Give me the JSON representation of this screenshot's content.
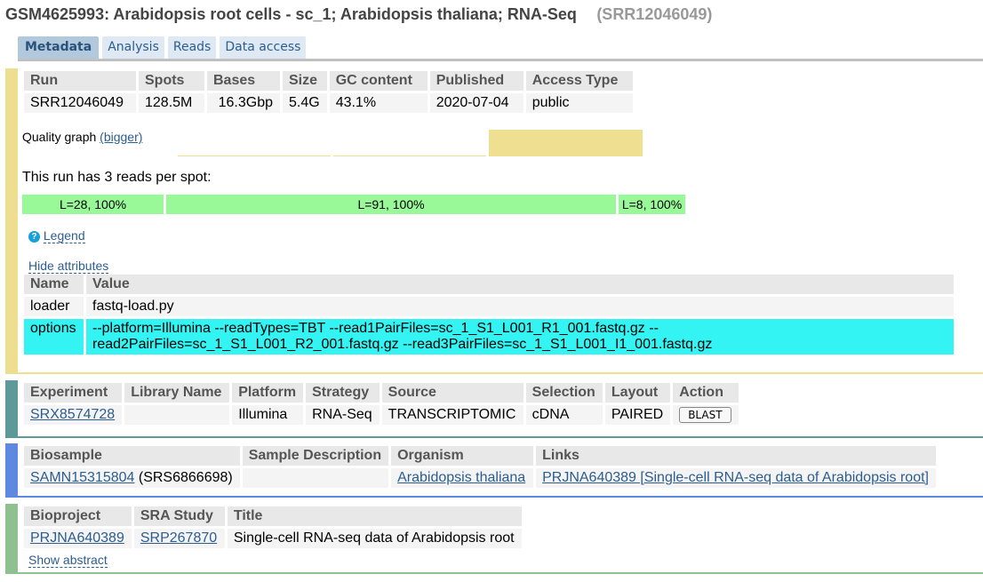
{
  "page": {
    "title": "GSM4625993: Arabidopsis root cells - sc_1; Arabidopsis thaliana; RNA-Seq",
    "accession": "(SRR12046049)"
  },
  "tabs": [
    "Metadata",
    "Analysis",
    "Reads",
    "Data access"
  ],
  "run_table": {
    "headers": [
      "Run",
      "Spots",
      "Bases",
      "Size",
      "GC content",
      "Published",
      "Access Type"
    ],
    "row": [
      "SRR12046049",
      "128.5M",
      "16.3Gbp",
      "5.4G",
      "43.1%",
      "2020-07-04",
      "public"
    ]
  },
  "quality": {
    "label": "Quality graph",
    "link": "(bigger)"
  },
  "reads": {
    "label": "This run has 3 reads per spot:",
    "segments": [
      "L=28, 100%",
      "L=91, 100%",
      "L=8, 100%"
    ]
  },
  "legend": {
    "icon": "?",
    "label": "Legend"
  },
  "hide_attributes": "Hide attributes",
  "attributes": {
    "headers": [
      "Name",
      "Value"
    ],
    "rows": [
      {
        "name": "loader",
        "value": "fastq-load.py"
      },
      {
        "name": "options",
        "value": "--platform=Illumina --readTypes=TBT --read1PairFiles=sc_1_S1_L001_R1_001.fastq.gz --read2PairFiles=sc_1_S1_L001_R2_001.fastq.gz --read3PairFiles=sc_1_S1_L001_I1_001.fastq.gz"
      }
    ]
  },
  "experiment": {
    "headers": [
      "Experiment",
      "Library Name",
      "Platform",
      "Strategy",
      "Source",
      "Selection",
      "Layout",
      "Action"
    ],
    "row": {
      "experiment": "SRX8574728",
      "library": "",
      "platform": "Illumina",
      "strategy": "RNA-Seq",
      "source": "TRANSCRIPTOMIC",
      "selection": "cDNA",
      "layout": "PAIRED",
      "action": "BLAST"
    }
  },
  "biosample": {
    "headers": [
      "Biosample",
      "Sample Description",
      "Organism",
      "Links"
    ],
    "row": {
      "biosample": "SAMN15315804",
      "srs": " (SRS6866698)",
      "description": "",
      "organism": "Arabidopsis thaliana",
      "links": "PRJNA640389 [Single-cell RNA-seq data of Arabidopsis root]"
    }
  },
  "bioproject": {
    "headers": [
      "Bioproject",
      "SRA Study",
      "Title"
    ],
    "row": {
      "bioproject": "PRJNA640389",
      "study": "SRP267870",
      "title": "Single-cell RNA-seq data of Arabidopsis root"
    },
    "show_abstract": "Show abstract"
  }
}
